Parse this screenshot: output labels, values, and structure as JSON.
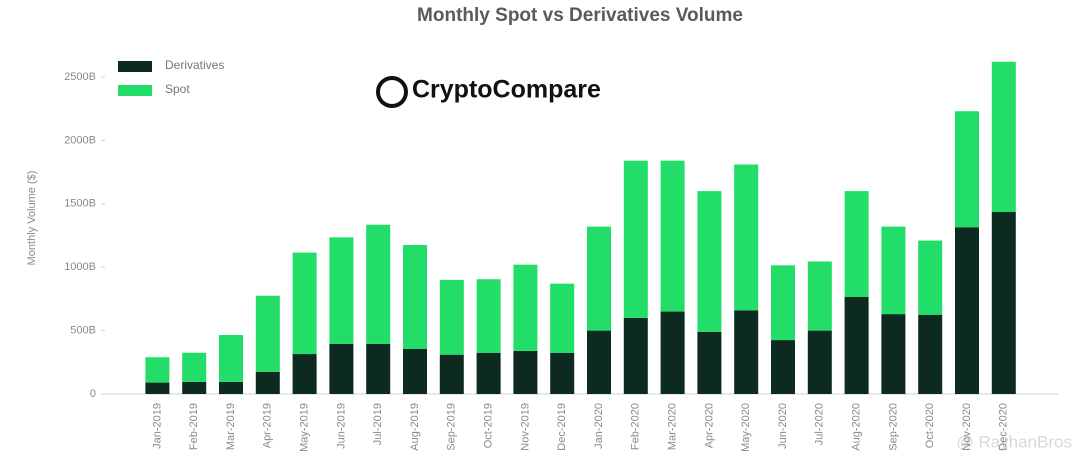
{
  "chart_data": {
    "type": "stacked_bar",
    "title": "Monthly Spot vs Derivatives Volume",
    "y_label": "Monthly Volume ($)",
    "logo_text": "CryptoCompare",
    "watermark": "@ RayhanBros",
    "categories": [
      "Jan-2019",
      "Feb-2019",
      "Mar-2019",
      "Apr-2019",
      "May-2019",
      "Jun-2019",
      "Jul-2019",
      "Aug-2019",
      "Sep-2019",
      "Oct-2019",
      "Nov-2019",
      "Dec-2019",
      "Jan-2020",
      "Feb-2020",
      "Mar-2020",
      "Apr-2020",
      "May-2020",
      "Jun-2020",
      "Jul-2020",
      "Aug-2020",
      "Sep-2020",
      "Oct-2020",
      "Nov-2020",
      "Dec-2020"
    ],
    "series": [
      {
        "name": "Derivatives",
        "color": "#0c2a20",
        "values": [
          90,
          95,
          95,
          175,
          315,
          395,
          395,
          355,
          310,
          325,
          340,
          325,
          500,
          600,
          650,
          490,
          660,
          425,
          500,
          765,
          630,
          625,
          1315,
          1435
        ]
      },
      {
        "name": "Spot",
        "color": "#22de68",
        "values": [
          200,
          230,
          370,
          600,
          800,
          840,
          940,
          820,
          590,
          580,
          680,
          545,
          820,
          1240,
          1190,
          1110,
          1150,
          590,
          545,
          835,
          690,
          585,
          915,
          1185
        ]
      }
    ],
    "ylim": [
      0,
      2700
    ],
    "yticks": [
      0,
      {
        "value": 500,
        "label": "500B"
      },
      {
        "value": 1000,
        "label": "1000B"
      },
      {
        "value": 1500,
        "label": "1500B"
      },
      {
        "value": 2000,
        "label": "2000B"
      },
      {
        "value": 2500,
        "label": "2500B"
      }
    ],
    "grid": false,
    "legend": "top-left"
  }
}
